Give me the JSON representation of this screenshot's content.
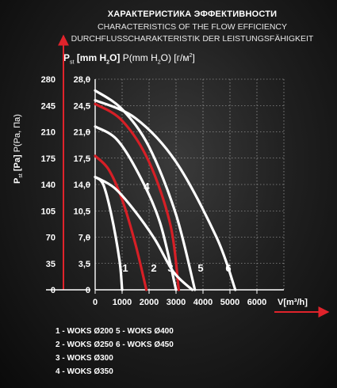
{
  "title_ru": "ХАРАКТЕРИСТИКА ЭФФЕКТИВНОСТИ",
  "title_en": "CHARACTERISTICS OF THE FLOW EFFICIENCY",
  "title_de": "DURCHFLUSSCHARAKTERISTIK DER LEISTUNGSFÄHIGKEIT",
  "units_header": {
    "p": "P",
    "st": "st",
    "mm": "[mm H",
    "two": "2",
    "o": "O]",
    "rest1": " P(mm H",
    "rest2": "O) [г/м",
    "rest3": "]"
  },
  "ylabel_rot": {
    "p": "P",
    "st": "st",
    "pa": "[Pa]",
    "rest": " P(Pa, Па)"
  },
  "xlabel": "V[m³/h]",
  "colors": {
    "white": "#ffffff",
    "red": "#d61f26",
    "arrow": "#e0232b"
  },
  "chart_data": {
    "type": "line",
    "title": "CHARACTERISTICS OF THE FLOW EFFICIENCY",
    "xlabel": "V[m³/h]",
    "ylabel": "Pst [Pa] P(Pa, Па)",
    "x_ticks": [
      "0",
      "1000",
      "2000",
      "3000",
      "4000",
      "5000",
      "6000"
    ],
    "y_ticks_pa": [
      "0",
      "35",
      "70",
      "105",
      "140",
      "175",
      "210",
      "245",
      "280"
    ],
    "y_ticks_mm": [
      "0",
      "3,5",
      "7,0",
      "10,5",
      "14,0",
      "17,5",
      "21,0",
      "24,5",
      "28,0"
    ],
    "xlim": [
      0,
      7000
    ],
    "ylim": [
      0,
      280
    ],
    "grid": true,
    "series": [
      {
        "name": "1 - WOKS Ø200",
        "label": "1",
        "color": "#ffffff",
        "x": [
          0,
          300,
          600,
          900,
          1000
        ],
        "y": [
          150,
          140,
          100,
          40,
          0
        ]
      },
      {
        "name": "2 - WOKS Ø250",
        "label": "2",
        "color": "#d61f26",
        "x": [
          0,
          500,
          1000,
          1500,
          1900
        ],
        "y": [
          178,
          160,
          120,
          60,
          0
        ]
      },
      {
        "name": "3 - WOKS Ø300",
        "label": "3",
        "color": "#ffffff",
        "x": [
          0,
          800,
          1600,
          2400,
          3000
        ],
        "y": [
          217,
          200,
          155,
          90,
          0
        ]
      },
      {
        "name": "4 - WOKS Ø350",
        "label": "4",
        "color": "#d61f26",
        "x": [
          0,
          1000,
          2000,
          2800,
          3100
        ],
        "y": [
          247,
          225,
          170,
          85,
          0
        ]
      },
      {
        "name": "5 - WOKS Ø400",
        "label": "5",
        "color": "#ffffff",
        "x": [
          0,
          1000,
          2000,
          3000,
          3700
        ],
        "y": [
          265,
          240,
          190,
          100,
          0
        ]
      },
      {
        "name": "6 - WOKS Ø450",
        "label": "6",
        "color": "#ffffff",
        "x": [
          0,
          1500,
          3000,
          4500,
          5200
        ],
        "y": [
          252,
          228,
          170,
          70,
          0
        ]
      },
      {
        "name": "",
        "label": "",
        "color": "#ffffff",
        "x": [
          0,
          700,
          1400,
          2200,
          2900,
          3600
        ],
        "y": [
          150,
          136,
          108,
          68,
          24,
          0
        ]
      }
    ]
  },
  "curve_labels": [
    "1",
    "2",
    "3",
    "4",
    "5",
    "6"
  ],
  "legend": {
    "col1": [
      "1 - WOKS Ø200",
      "2 - WOKS Ø250",
      "3 - WOKS Ø300",
      "4 - WOKS Ø350"
    ],
    "col2": [
      "5 - WOKS Ø400",
      "6 - WOKS Ø450"
    ]
  }
}
